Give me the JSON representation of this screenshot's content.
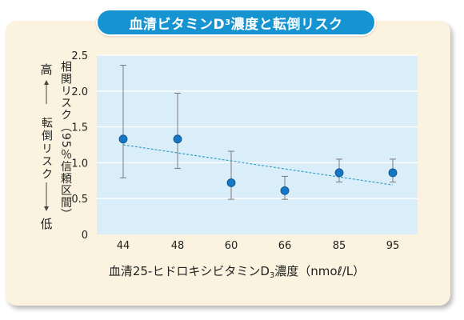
{
  "header": {
    "title_main": "血清ビタミンD",
    "title_sub": "3",
    "title_tail": "濃度と転倒リスク"
  },
  "axes": {
    "x_title_main": "血清25-ヒドロキシビタミンD",
    "x_title_sub": "3",
    "x_title_tail": "濃度（nmoℓ/L）",
    "y_title": "相関リスク（95％信頼区間）",
    "side_high": "高",
    "side_label": "転倒リスク",
    "side_low": "低"
  },
  "chart_data": {
    "type": "scatter",
    "title": "血清ビタミンD3濃度と転倒リスク",
    "xlabel": "血清25-ヒドロキシビタミンD3濃度（nmoℓ/L）",
    "ylabel": "相関リスク（95％信頼区間）",
    "categories": [
      "44",
      "48",
      "60",
      "66",
      "85",
      "95"
    ],
    "values": [
      1.33,
      1.33,
      0.72,
      0.61,
      0.86,
      0.86
    ],
    "error_low": [
      0.79,
      0.92,
      0.49,
      0.49,
      0.73,
      0.73
    ],
    "error_high": [
      2.36,
      1.97,
      1.16,
      0.81,
      1.05,
      1.05
    ],
    "trend": {
      "type": "dashed-line",
      "start": 1.25,
      "end": 0.69
    },
    "ylim": [
      0,
      2.5
    ],
    "yticks": [
      "0",
      "0.5",
      "1.0",
      "1.5",
      "2.0",
      "2.5"
    ],
    "grid": true,
    "colors": {
      "point": "#1577c4",
      "trend": "#3aa0c8",
      "plot_bg": "#d9eef8",
      "grid": "#ffffff",
      "title_bg": "#1694d2",
      "card_bg": "#fbf3df"
    }
  }
}
